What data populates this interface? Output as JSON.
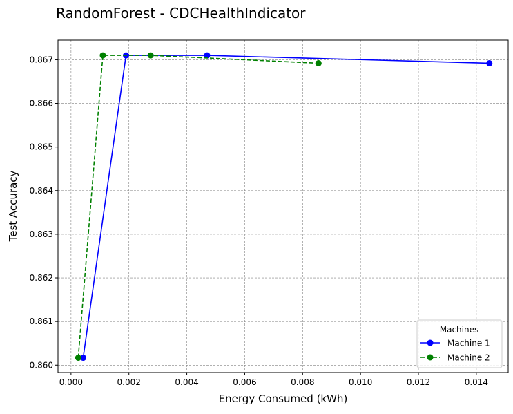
{
  "chart_data": {
    "type": "line",
    "title": "RandomForest - CDCHealthIndicator",
    "xlabel": "Energy Consumed (kWh)",
    "ylabel": "Test Accuracy",
    "xlim": [
      -0.00045,
      0.0151
    ],
    "ylim": [
      0.85983,
      0.86745
    ],
    "x_ticks": [
      0.0,
      0.002,
      0.004,
      0.006,
      0.008,
      0.01,
      0.012,
      0.014
    ],
    "x_tick_labels": [
      "0.000",
      "0.002",
      "0.004",
      "0.006",
      "0.008",
      "0.010",
      "0.012",
      "0.014"
    ],
    "y_ticks": [
      0.86,
      0.861,
      0.862,
      0.863,
      0.864,
      0.865,
      0.866,
      0.867
    ],
    "y_tick_labels": [
      "0.860",
      "0.861",
      "0.862",
      "0.863",
      "0.864",
      "0.865",
      "0.866",
      "0.867"
    ],
    "grid": true,
    "legend": {
      "title": "Machines",
      "placement": "lower-right"
    },
    "series": [
      {
        "name": "Machine 1",
        "color": "#0000ff",
        "line_style": "solid",
        "marker": "circle",
        "points": [
          {
            "x": 0.00042,
            "y": 0.86017
          },
          {
            "x": 0.0019,
            "y": 0.8671
          },
          {
            "x": 0.0047,
            "y": 0.8671
          },
          {
            "x": 0.01445,
            "y": 0.86692
          }
        ]
      },
      {
        "name": "Machine 2",
        "color": "#008000",
        "line_style": "dashed",
        "marker": "circle",
        "points": [
          {
            "x": 0.00025,
            "y": 0.86017
          },
          {
            "x": 0.0011,
            "y": 0.8671
          },
          {
            "x": 0.00275,
            "y": 0.8671
          },
          {
            "x": 0.00855,
            "y": 0.86692
          }
        ]
      }
    ]
  }
}
